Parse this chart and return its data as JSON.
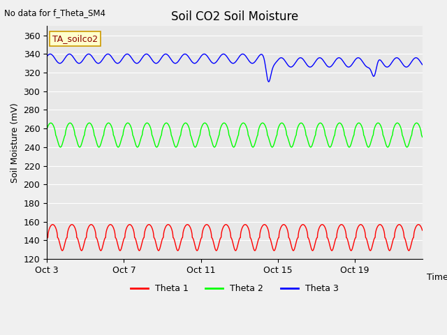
{
  "title": "Soil CO2 Soil Moisture",
  "top_left_text": "No data for f_Theta_SM4",
  "ylabel": "Soil Moisture (mV)",
  "xlabel": "Time",
  "annotation_box": "TA_soilco2",
  "ylim": [
    120,
    370
  ],
  "yticks": [
    120,
    140,
    160,
    180,
    200,
    220,
    240,
    260,
    280,
    300,
    320,
    340,
    360
  ],
  "xtick_labels": [
    "Oct 3",
    "Oct 7",
    "Oct 11",
    "Oct 15",
    "Oct 19"
  ],
  "plot_bg": "#e8e8e8",
  "fig_bg": "#f0f0f0",
  "theta1_base": 143,
  "theta1_amp": 14,
  "theta2_base": 253,
  "theta2_amp": 13,
  "theta3_base": 335,
  "theta3_amp": 5,
  "n_days": 19.5,
  "period_days": 1.0,
  "drop1_day": 11.5,
  "drop1_depth": 22,
  "drop2_day": 17.0,
  "drop2_depth": 17
}
